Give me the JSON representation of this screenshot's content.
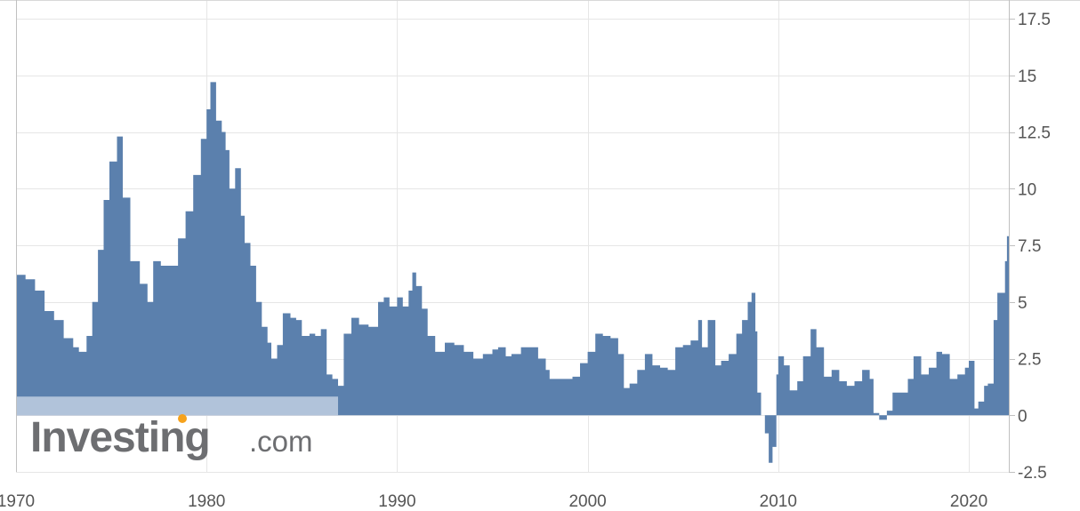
{
  "watermark": {
    "brand": "Investing",
    "suffix": ".com",
    "dot_color": "#f6a21c"
  },
  "colors": {
    "area": "#5b80ad",
    "area_faded": "#b1c3da",
    "grid": "#e6e6e6",
    "axis": "#c0c0c0"
  },
  "chart_data": {
    "type": "area",
    "title": "",
    "xlabel": "",
    "ylabel": "",
    "xlim": [
      1970,
      2022.1
    ],
    "ylim": [
      -2.5,
      17.5
    ],
    "grid": true,
    "legend": "none",
    "x_ticks": [
      {
        "value": 1970,
        "label": "1970"
      },
      {
        "value": 1980,
        "label": "1980"
      },
      {
        "value": 1990,
        "label": "1990"
      },
      {
        "value": 2000,
        "label": "2000"
      },
      {
        "value": 2010,
        "label": "2010"
      },
      {
        "value": 2020,
        "label": "2020"
      }
    ],
    "y_ticks": [
      {
        "value": 17.5,
        "label": "17.5"
      },
      {
        "value": 15,
        "label": "15"
      },
      {
        "value": 12.5,
        "label": "12.5"
      },
      {
        "value": 10,
        "label": "10"
      },
      {
        "value": 7.5,
        "label": "7.5"
      },
      {
        "value": 5,
        "label": "5"
      },
      {
        "value": 2.5,
        "label": "2.5"
      },
      {
        "value": 0,
        "label": "0"
      },
      {
        "value": -2.5,
        "label": "-2.5"
      }
    ],
    "series": [
      {
        "points": [
          [
            1970.0,
            6.2
          ],
          [
            1970.5,
            6.0
          ],
          [
            1971.0,
            5.5
          ],
          [
            1971.5,
            4.6
          ],
          [
            1972.0,
            4.2
          ],
          [
            1972.5,
            3.4
          ],
          [
            1973.0,
            3.0
          ],
          [
            1973.3,
            2.8
          ],
          [
            1973.7,
            3.5
          ],
          [
            1974.0,
            5.0
          ],
          [
            1974.3,
            7.3
          ],
          [
            1974.6,
            9.5
          ],
          [
            1974.9,
            11.2
          ],
          [
            1975.3,
            12.3
          ],
          [
            1975.6,
            9.6
          ],
          [
            1976.0,
            6.8
          ],
          [
            1976.5,
            5.8
          ],
          [
            1976.9,
            5.0
          ],
          [
            1977.2,
            6.8
          ],
          [
            1977.6,
            6.6
          ],
          [
            1978.0,
            6.6
          ],
          [
            1978.5,
            7.8
          ],
          [
            1978.9,
            9.0
          ],
          [
            1979.3,
            10.6
          ],
          [
            1979.7,
            12.2
          ],
          [
            1980.0,
            13.5
          ],
          [
            1980.2,
            14.7
          ],
          [
            1980.5,
            13.0
          ],
          [
            1980.8,
            12.5
          ],
          [
            1981.0,
            11.7
          ],
          [
            1981.2,
            10.0
          ],
          [
            1981.5,
            10.9
          ],
          [
            1981.8,
            8.8
          ],
          [
            1982.0,
            7.6
          ],
          [
            1982.3,
            6.6
          ],
          [
            1982.6,
            5.0
          ],
          [
            1982.9,
            3.9
          ],
          [
            1983.2,
            3.2
          ],
          [
            1983.4,
            2.5
          ],
          [
            1983.7,
            3.1
          ],
          [
            1984.0,
            4.5
          ],
          [
            1984.4,
            4.3
          ],
          [
            1984.7,
            4.2
          ],
          [
            1985.0,
            3.5
          ],
          [
            1985.4,
            3.6
          ],
          [
            1985.7,
            3.5
          ],
          [
            1986.0,
            3.8
          ],
          [
            1986.3,
            1.8
          ],
          [
            1986.6,
            1.6
          ],
          [
            1986.9,
            1.3
          ],
          [
            1987.2,
            3.6
          ],
          [
            1987.6,
            4.3
          ],
          [
            1988.0,
            4.0
          ],
          [
            1988.5,
            3.9
          ],
          [
            1989.0,
            5.0
          ],
          [
            1989.3,
            5.2
          ],
          [
            1989.6,
            4.8
          ],
          [
            1990.0,
            5.2
          ],
          [
            1990.3,
            4.8
          ],
          [
            1990.6,
            5.5
          ],
          [
            1990.8,
            6.3
          ],
          [
            1991.0,
            5.7
          ],
          [
            1991.3,
            4.7
          ],
          [
            1991.6,
            3.5
          ],
          [
            1992.0,
            2.8
          ],
          [
            1992.5,
            3.2
          ],
          [
            1993.0,
            3.1
          ],
          [
            1993.5,
            2.8
          ],
          [
            1994.0,
            2.5
          ],
          [
            1994.5,
            2.7
          ],
          [
            1995.0,
            2.9
          ],
          [
            1995.3,
            3.0
          ],
          [
            1995.7,
            2.6
          ],
          [
            1996.0,
            2.7
          ],
          [
            1996.5,
            3.0
          ],
          [
            1997.0,
            3.0
          ],
          [
            1997.4,
            2.5
          ],
          [
            1997.8,
            2.0
          ],
          [
            1998.0,
            1.6
          ],
          [
            1998.4,
            1.6
          ],
          [
            1998.8,
            1.6
          ],
          [
            1999.2,
            1.7
          ],
          [
            1999.6,
            2.3
          ],
          [
            2000.0,
            2.8
          ],
          [
            2000.4,
            3.6
          ],
          [
            2000.8,
            3.5
          ],
          [
            2001.2,
            3.4
          ],
          [
            2001.6,
            2.7
          ],
          [
            2001.9,
            1.2
          ],
          [
            2002.2,
            1.4
          ],
          [
            2002.6,
            2.0
          ],
          [
            2003.0,
            2.7
          ],
          [
            2003.4,
            2.2
          ],
          [
            2003.8,
            2.1
          ],
          [
            2004.2,
            2.0
          ],
          [
            2004.6,
            3.0
          ],
          [
            2005.0,
            3.1
          ],
          [
            2005.4,
            3.3
          ],
          [
            2005.8,
            4.2
          ],
          [
            2006.0,
            3.0
          ],
          [
            2006.3,
            4.2
          ],
          [
            2006.7,
            2.2
          ],
          [
            2007.0,
            2.4
          ],
          [
            2007.4,
            2.7
          ],
          [
            2007.8,
            3.6
          ],
          [
            2008.1,
            4.2
          ],
          [
            2008.4,
            5.0
          ],
          [
            2008.6,
            5.4
          ],
          [
            2008.8,
            3.7
          ],
          [
            2008.9,
            1.0
          ],
          [
            2009.1,
            0.0
          ],
          [
            2009.3,
            -0.8
          ],
          [
            2009.5,
            -2.1
          ],
          [
            2009.7,
            -1.4
          ],
          [
            2009.9,
            1.8
          ],
          [
            2010.0,
            2.6
          ],
          [
            2010.3,
            2.2
          ],
          [
            2010.6,
            1.1
          ],
          [
            2011.0,
            1.5
          ],
          [
            2011.3,
            2.6
          ],
          [
            2011.7,
            3.8
          ],
          [
            2012.0,
            3.0
          ],
          [
            2012.4,
            1.7
          ],
          [
            2012.8,
            2.0
          ],
          [
            2013.2,
            1.5
          ],
          [
            2013.6,
            1.3
          ],
          [
            2014.0,
            1.5
          ],
          [
            2014.4,
            2.0
          ],
          [
            2014.8,
            1.6
          ],
          [
            2015.0,
            0.1
          ],
          [
            2015.3,
            -0.2
          ],
          [
            2015.7,
            0.2
          ],
          [
            2016.0,
            1.0
          ],
          [
            2016.4,
            1.0
          ],
          [
            2016.8,
            1.6
          ],
          [
            2017.1,
            2.6
          ],
          [
            2017.5,
            1.8
          ],
          [
            2017.9,
            2.1
          ],
          [
            2018.3,
            2.8
          ],
          [
            2018.6,
            2.7
          ],
          [
            2019.0,
            1.6
          ],
          [
            2019.4,
            1.8
          ],
          [
            2019.8,
            2.1
          ],
          [
            2020.0,
            2.4
          ],
          [
            2020.3,
            0.3
          ],
          [
            2020.5,
            0.6
          ],
          [
            2020.8,
            1.3
          ],
          [
            2021.0,
            1.4
          ],
          [
            2021.3,
            4.2
          ],
          [
            2021.5,
            5.4
          ],
          [
            2021.7,
            5.4
          ],
          [
            2021.9,
            6.8
          ],
          [
            2022.0,
            7.9
          ],
          [
            2022.1,
            8.5
          ]
        ]
      }
    ]
  }
}
